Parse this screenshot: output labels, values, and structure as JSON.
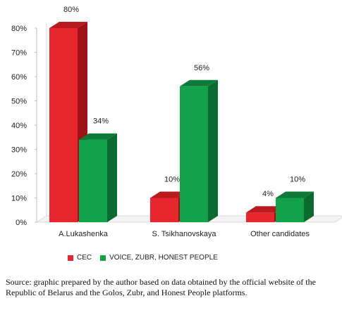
{
  "chart_data": {
    "type": "bar",
    "categories": [
      "A.Lukashenka",
      "S. Tsikhanovskaya",
      "Other candidates"
    ],
    "series": [
      {
        "name": "CEC",
        "values": [
          80,
          10,
          4
        ],
        "labels": [
          "80%",
          "10%",
          "4%"
        ],
        "color": "#e8262d",
        "side_color": "#9e1218",
        "top_color": "#b81a20"
      },
      {
        "name": "VOICE, ZUBR, HONEST PEOPLE",
        "values": [
          34,
          56,
          10
        ],
        "labels": [
          "34%",
          "56%",
          "10%"
        ],
        "color": "#12a24a",
        "side_color": "#0b6a30",
        "top_color": "#0d7a37"
      }
    ],
    "yticks": [
      "0%",
      "10%",
      "20%",
      "30%",
      "40%",
      "50%",
      "60%",
      "70%",
      "80%"
    ],
    "ylim": [
      0,
      80
    ],
    "grid": false,
    "legend_position": "bottom-left"
  },
  "caption": "Source: graphic prepared by the author based on data obtained by the official website of the Republic of Belarus and the Golos, Zubr, and Honest People platforms."
}
